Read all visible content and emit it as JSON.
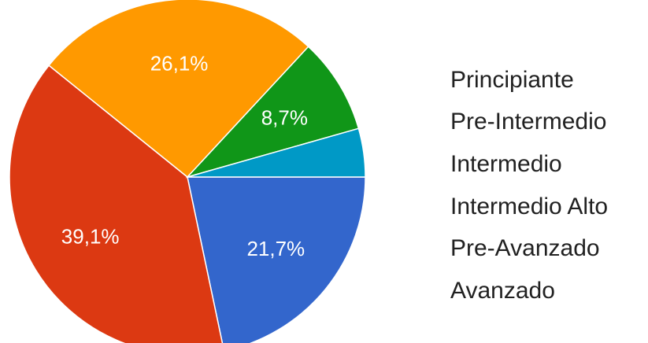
{
  "chart_data": {
    "type": "pie",
    "categories": [
      "Principiante",
      "Pre-Intermedio",
      "Intermedio",
      "Intermedio Alto",
      "Pre-Avanzado",
      "Avanzado"
    ],
    "values": [
      21.7,
      39.1,
      26.1,
      8.7,
      4.4,
      0
    ],
    "data_labels": [
      "21,7%",
      "39,1%",
      "26,1%",
      "8,7%",
      "",
      ""
    ],
    "colors": [
      "#3366cc",
      "#dc3912",
      "#ff9900",
      "#109618",
      "#0099c6",
      "#dd4477"
    ],
    "legend_position": "right"
  }
}
